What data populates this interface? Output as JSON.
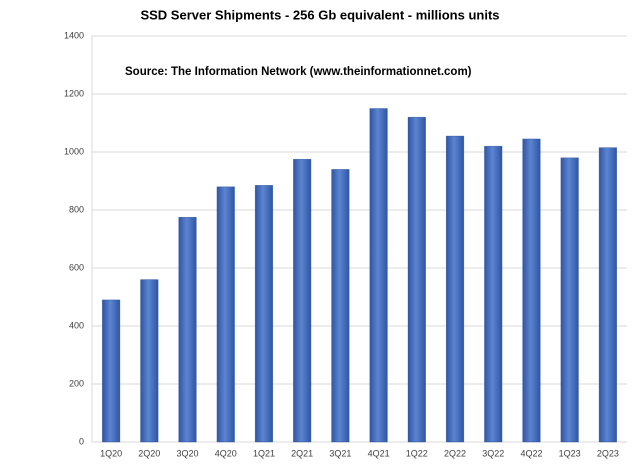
{
  "chart_data": {
    "type": "bar",
    "title": "SSD Server Shipments - 256 Gb equivalent  - millions units",
    "subtitle": "Source: The Information Network (www.theinformationnet.com)",
    "categories": [
      "1Q20",
      "2Q20",
      "3Q20",
      "4Q20",
      "1Q21",
      "2Q21",
      "3Q21",
      "4Q21",
      "1Q22",
      "2Q22",
      "3Q22",
      "4Q22",
      "1Q23",
      "2Q23"
    ],
    "values": [
      490,
      560,
      775,
      880,
      885,
      975,
      940,
      1150,
      1120,
      1055,
      1020,
      1045,
      980,
      1015
    ],
    "color": "#4472c4",
    "ylim": [
      0,
      1400
    ],
    "yticks": [
      0,
      200,
      400,
      600,
      800,
      1000,
      1200,
      1400
    ],
    "grid": true
  }
}
